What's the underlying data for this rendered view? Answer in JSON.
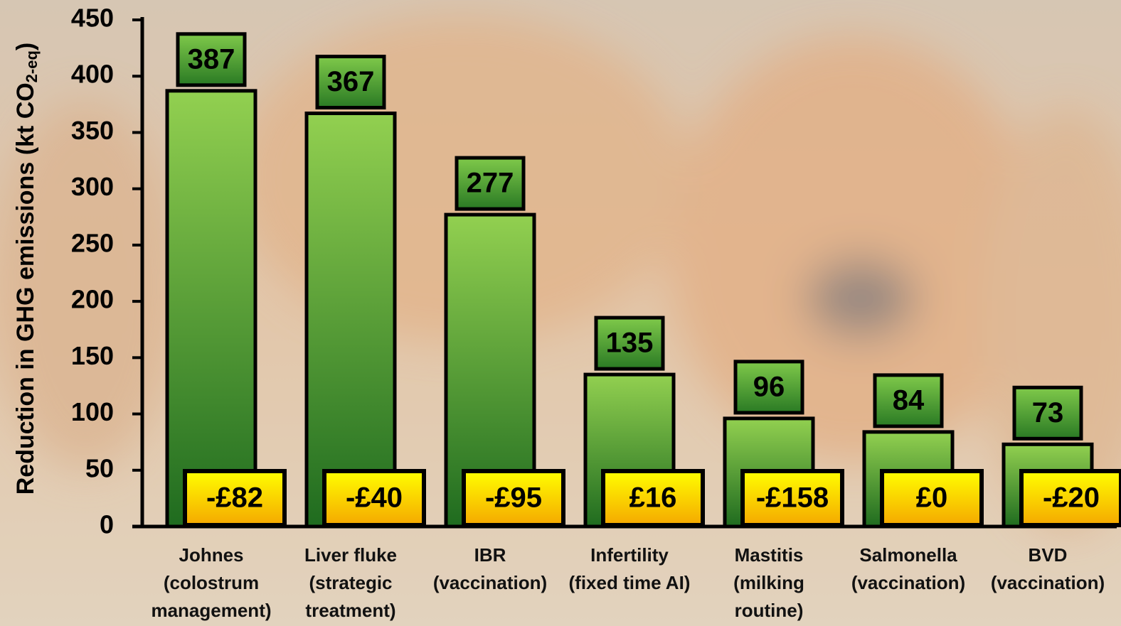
{
  "chart_data": {
    "type": "bar",
    "ylabel": "Reduction in GHG emissions (kt CO",
    "ylabel_sub": "2-eq",
    "ylabel_end": ")",
    "categories": [
      [
        "Johnes",
        "(colostrum",
        "management)"
      ],
      [
        "Liver fluke",
        "(strategic",
        "treatment)"
      ],
      [
        "IBR",
        "(vaccination)"
      ],
      [
        "Infertility",
        "(fixed time AI)"
      ],
      [
        "Mastitis",
        "(milking",
        "routine)"
      ],
      [
        "Salmonella",
        "(vaccination)"
      ],
      [
        "BVD",
        "(vaccination)"
      ]
    ],
    "values": [
      387,
      367,
      277,
      135,
      96,
      84,
      73
    ],
    "cost_labels": [
      "-£82",
      "-£40",
      "-£95",
      "£16",
      "-£158",
      "£0",
      "-£20"
    ],
    "color": "#8fd14f",
    "ylim": [
      0,
      450
    ],
    "yticks": [
      0,
      50,
      100,
      150,
      200,
      250,
      300,
      350,
      400,
      450
    ]
  }
}
